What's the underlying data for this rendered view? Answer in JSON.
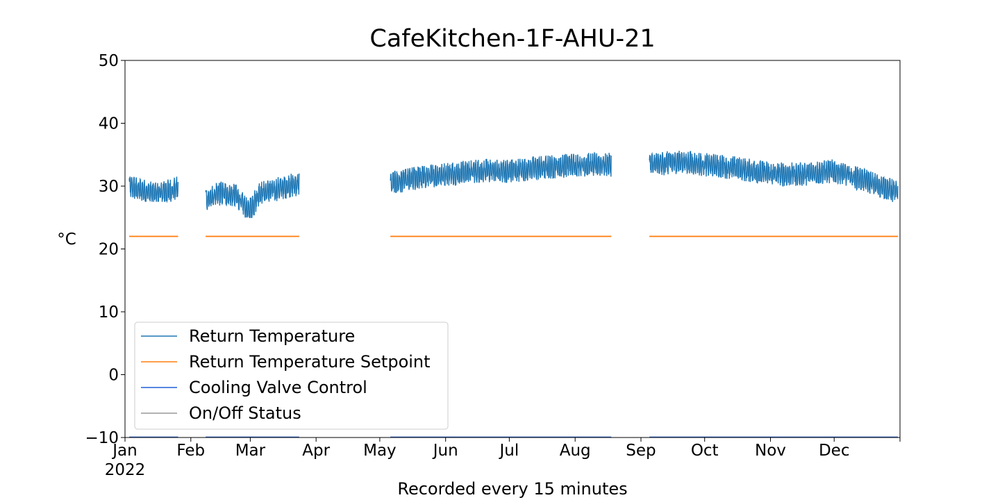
{
  "chart_data": {
    "type": "line",
    "title": "CafeKitchen-1F-AHU-21",
    "xlabel": "Recorded every 15 minutes",
    "ylabel": "°C",
    "ylim": [
      -10,
      50
    ],
    "yticks": [
      -10,
      0,
      10,
      20,
      30,
      40,
      50
    ],
    "ytick_labels": [
      "−10",
      "0",
      "10",
      "20",
      "30",
      "40",
      "50"
    ],
    "xlim": [
      "2022-01-01",
      "2023-01-01"
    ],
    "xticks": [
      {
        "date": "2022-01-01",
        "label": "Jan",
        "sublabel": "2022"
      },
      {
        "date": "2022-02-01",
        "label": "Feb"
      },
      {
        "date": "2022-03-01",
        "label": "Mar"
      },
      {
        "date": "2022-04-01",
        "label": "Apr"
      },
      {
        "date": "2022-05-01",
        "label": "May"
      },
      {
        "date": "2022-06-01",
        "label": "Jun"
      },
      {
        "date": "2022-07-01",
        "label": "Jul"
      },
      {
        "date": "2022-08-01",
        "label": "Aug"
      },
      {
        "date": "2022-09-01",
        "label": "Sep"
      },
      {
        "date": "2022-10-01",
        "label": "Oct"
      },
      {
        "date": "2022-11-01",
        "label": "Nov"
      },
      {
        "date": "2022-12-01",
        "label": "Dec"
      }
    ],
    "grid": false,
    "legend_position": "lower-left",
    "series": [
      {
        "name": "Return Temperature",
        "color": "#1f77b4",
        "segments": [
          {
            "start": "2022-01-03",
            "end": "2022-01-26",
            "min": 27.5,
            "max": 31.5,
            "x": [
              "2022-01-03",
              "2022-01-08",
              "2022-01-13",
              "2022-01-18",
              "2022-01-23",
              "2022-01-26"
            ],
            "y": [
              30.0,
              29.5,
              29.0,
              29.0,
              29.5,
              30.0
            ]
          },
          {
            "start": "2022-02-08",
            "end": "2022-03-24",
            "min": 25.0,
            "max": 32.5,
            "x": [
              "2022-02-08",
              "2022-02-15",
              "2022-02-22",
              "2022-02-28",
              "2022-03-05",
              "2022-03-12",
              "2022-03-17",
              "2022-03-24"
            ],
            "y": [
              28.0,
              29.0,
              28.5,
              26.0,
              29.0,
              29.5,
              30.0,
              30.5
            ]
          },
          {
            "start": "2022-05-06",
            "end": "2022-08-18",
            "min": 29.0,
            "max": 35.5,
            "x": [
              "2022-05-06",
              "2022-05-20",
              "2022-06-01",
              "2022-06-15",
              "2022-07-01",
              "2022-07-15",
              "2022-08-01",
              "2022-08-18"
            ],
            "y": [
              30.5,
              31.5,
              32.0,
              32.5,
              32.5,
              33.0,
              33.5,
              33.5
            ]
          },
          {
            "start": "2022-09-05",
            "end": "2022-12-31",
            "min": 26.5,
            "max": 36.0,
            "x": [
              "2022-09-05",
              "2022-09-20",
              "2022-10-01",
              "2022-10-15",
              "2022-11-01",
              "2022-11-15",
              "2022-12-01",
              "2022-12-15",
              "2022-12-31"
            ],
            "y": [
              33.5,
              34.0,
              33.5,
              33.0,
              32.0,
              32.0,
              32.5,
              31.0,
              29.0
            ]
          }
        ]
      },
      {
        "name": "Return Temperature Setpoint",
        "color": "#ff7f0e",
        "value": 22,
        "segments": [
          {
            "start": "2022-01-03",
            "end": "2022-01-26"
          },
          {
            "start": "2022-02-08",
            "end": "2022-03-24"
          },
          {
            "start": "2022-05-06",
            "end": "2022-08-18"
          },
          {
            "start": "2022-09-05",
            "end": "2022-12-31"
          }
        ]
      },
      {
        "name": "Cooling Valve Control",
        "color": "#1f5fd6",
        "value": -10,
        "segments": [
          {
            "start": "2022-01-03",
            "end": "2022-01-26"
          },
          {
            "start": "2022-02-08",
            "end": "2022-03-24"
          },
          {
            "start": "2022-05-06",
            "end": "2022-08-18"
          },
          {
            "start": "2022-09-05",
            "end": "2022-12-31"
          }
        ]
      },
      {
        "name": "On/Off Status",
        "color": "#999999",
        "value": -10,
        "segments": [
          {
            "start": "2022-01-03",
            "end": "2022-01-26"
          },
          {
            "start": "2022-02-08",
            "end": "2022-03-24"
          },
          {
            "start": "2022-05-06",
            "end": "2022-08-18"
          },
          {
            "start": "2022-09-05",
            "end": "2022-12-31"
          }
        ]
      }
    ]
  }
}
